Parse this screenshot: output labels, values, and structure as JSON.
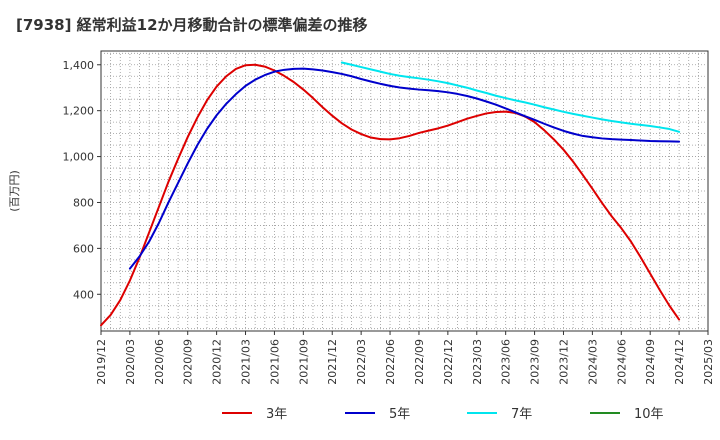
{
  "chart_data": {
    "type": "line",
    "title": "[7938]  経常利益12か月移動合計の標準偏差の推移",
    "ylabel": "(百万円)",
    "xlabel": "",
    "ylim": [
      240,
      1460
    ],
    "yticks": [
      400,
      600,
      800,
      1000,
      1200,
      1400
    ],
    "xticks": [
      "2019/12",
      "2020/03",
      "2020/06",
      "2020/09",
      "2020/12",
      "2021/03",
      "2021/06",
      "2021/09",
      "2021/12",
      "2022/03",
      "2022/06",
      "2022/09",
      "2022/12",
      "2023/03",
      "2023/06",
      "2023/09",
      "2023/12",
      "2024/03",
      "2024/06",
      "2024/09",
      "2024/12",
      "2025/03"
    ],
    "grid": true,
    "legend_position": "bottom",
    "series": [
      {
        "name": "3年",
        "color": "#dd0000",
        "points": [
          [
            "2019/12",
            265
          ],
          [
            "2020/01",
            310
          ],
          [
            "2020/02",
            375
          ],
          [
            "2020/03",
            460
          ],
          [
            "2020/04",
            560
          ],
          [
            "2020/05",
            670
          ],
          [
            "2020/06",
            780
          ],
          [
            "2020/07",
            890
          ],
          [
            "2020/08",
            990
          ],
          [
            "2020/09",
            1085
          ],
          [
            "2020/10",
            1170
          ],
          [
            "2020/11",
            1245
          ],
          [
            "2020/12",
            1305
          ],
          [
            "2021/01",
            1350
          ],
          [
            "2021/02",
            1382
          ],
          [
            "2021/03",
            1398
          ],
          [
            "2021/04",
            1400
          ],
          [
            "2021/05",
            1392
          ],
          [
            "2021/06",
            1375
          ],
          [
            "2021/07",
            1352
          ],
          [
            "2021/08",
            1325
          ],
          [
            "2021/09",
            1292
          ],
          [
            "2021/10",
            1255
          ],
          [
            "2021/11",
            1215
          ],
          [
            "2021/12",
            1178
          ],
          [
            "2022/01",
            1145
          ],
          [
            "2022/02",
            1118
          ],
          [
            "2022/03",
            1098
          ],
          [
            "2022/04",
            1083
          ],
          [
            "2022/05",
            1076
          ],
          [
            "2022/06",
            1075
          ],
          [
            "2022/07",
            1080
          ],
          [
            "2022/08",
            1090
          ],
          [
            "2022/09",
            1103
          ],
          [
            "2022/10",
            1113
          ],
          [
            "2022/11",
            1123
          ],
          [
            "2022/12",
            1135
          ],
          [
            "2023/01",
            1150
          ],
          [
            "2023/02",
            1165
          ],
          [
            "2023/03",
            1177
          ],
          [
            "2023/04",
            1188
          ],
          [
            "2023/05",
            1194
          ],
          [
            "2023/06",
            1196
          ],
          [
            "2023/07",
            1190
          ],
          [
            "2023/08",
            1175
          ],
          [
            "2023/09",
            1150
          ],
          [
            "2023/10",
            1115
          ],
          [
            "2023/11",
            1075
          ],
          [
            "2023/12",
            1030
          ],
          [
            "2024/01",
            978
          ],
          [
            "2024/02",
            920
          ],
          [
            "2024/03",
            860
          ],
          [
            "2024/04",
            798
          ],
          [
            "2024/05",
            740
          ],
          [
            "2024/06",
            688
          ],
          [
            "2024/07",
            630
          ],
          [
            "2024/08",
            562
          ],
          [
            "2024/09",
            490
          ],
          [
            "2024/10",
            418
          ],
          [
            "2024/11",
            350
          ],
          [
            "2024/12",
            290
          ]
        ]
      },
      {
        "name": "5年",
        "color": "#0000cc",
        "points": [
          [
            "2020/03",
            512
          ],
          [
            "2020/04",
            565
          ],
          [
            "2020/05",
            630
          ],
          [
            "2020/06",
            710
          ],
          [
            "2020/07",
            800
          ],
          [
            "2020/08",
            885
          ],
          [
            "2020/09",
            970
          ],
          [
            "2020/10",
            1050
          ],
          [
            "2020/11",
            1120
          ],
          [
            "2020/12",
            1180
          ],
          [
            "2021/01",
            1230
          ],
          [
            "2021/02",
            1272
          ],
          [
            "2021/03",
            1308
          ],
          [
            "2021/04",
            1335
          ],
          [
            "2021/05",
            1355
          ],
          [
            "2021/06",
            1370
          ],
          [
            "2021/07",
            1378
          ],
          [
            "2021/08",
            1382
          ],
          [
            "2021/09",
            1383
          ],
          [
            "2021/10",
            1380
          ],
          [
            "2021/11",
            1375
          ],
          [
            "2021/12",
            1368
          ],
          [
            "2022/01",
            1360
          ],
          [
            "2022/02",
            1350
          ],
          [
            "2022/03",
            1338
          ],
          [
            "2022/04",
            1327
          ],
          [
            "2022/05",
            1317
          ],
          [
            "2022/06",
            1308
          ],
          [
            "2022/07",
            1301
          ],
          [
            "2022/08",
            1296
          ],
          [
            "2022/09",
            1292
          ],
          [
            "2022/10",
            1289
          ],
          [
            "2022/11",
            1285
          ],
          [
            "2022/12",
            1280
          ],
          [
            "2023/01",
            1273
          ],
          [
            "2023/02",
            1264
          ],
          [
            "2023/03",
            1253
          ],
          [
            "2023/04",
            1240
          ],
          [
            "2023/05",
            1226
          ],
          [
            "2023/06",
            1210
          ],
          [
            "2023/07",
            1193
          ],
          [
            "2023/08",
            1176
          ],
          [
            "2023/09",
            1160
          ],
          [
            "2023/10",
            1143
          ],
          [
            "2023/11",
            1127
          ],
          [
            "2023/12",
            1112
          ],
          [
            "2024/01",
            1100
          ],
          [
            "2024/02",
            1090
          ],
          [
            "2024/03",
            1084
          ],
          [
            "2024/04",
            1079
          ],
          [
            "2024/05",
            1076
          ],
          [
            "2024/06",
            1074
          ],
          [
            "2024/07",
            1072
          ],
          [
            "2024/08",
            1070
          ],
          [
            "2024/09",
            1068
          ],
          [
            "2024/10",
            1067
          ],
          [
            "2024/11",
            1066
          ],
          [
            "2024/12",
            1065
          ]
        ]
      },
      {
        "name": "7年",
        "color": "#00e5ee",
        "points": [
          [
            "2022/01",
            1410
          ],
          [
            "2022/02",
            1400
          ],
          [
            "2022/03",
            1390
          ],
          [
            "2022/04",
            1380
          ],
          [
            "2022/05",
            1370
          ],
          [
            "2022/06",
            1360
          ],
          [
            "2022/07",
            1352
          ],
          [
            "2022/08",
            1346
          ],
          [
            "2022/09",
            1341
          ],
          [
            "2022/10",
            1335
          ],
          [
            "2022/11",
            1328
          ],
          [
            "2022/12",
            1320
          ],
          [
            "2023/01",
            1310
          ],
          [
            "2023/02",
            1300
          ],
          [
            "2023/03",
            1288
          ],
          [
            "2023/04",
            1277
          ],
          [
            "2023/05",
            1265
          ],
          [
            "2023/06",
            1255
          ],
          [
            "2023/07",
            1245
          ],
          [
            "2023/08",
            1236
          ],
          [
            "2023/09",
            1226
          ],
          [
            "2023/10",
            1215
          ],
          [
            "2023/11",
            1205
          ],
          [
            "2023/12",
            1195
          ],
          [
            "2024/01",
            1186
          ],
          [
            "2024/02",
            1178
          ],
          [
            "2024/03",
            1170
          ],
          [
            "2024/04",
            1162
          ],
          [
            "2024/05",
            1155
          ],
          [
            "2024/06",
            1149
          ],
          [
            "2024/07",
            1143
          ],
          [
            "2024/08",
            1138
          ],
          [
            "2024/09",
            1133
          ],
          [
            "2024/10",
            1127
          ],
          [
            "2024/11",
            1120
          ],
          [
            "2024/12",
            1108
          ]
        ]
      },
      {
        "name": "10年",
        "color": "#228b22",
        "points": []
      }
    ]
  }
}
